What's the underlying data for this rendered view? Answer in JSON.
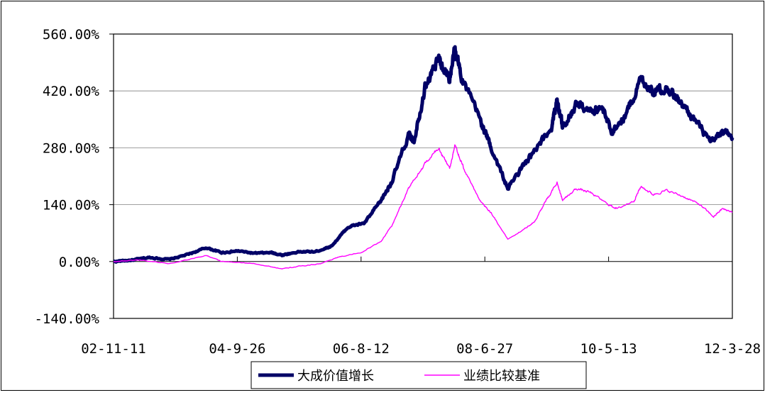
{
  "chart_data": {
    "type": "line",
    "title": "",
    "xlabel": "",
    "ylabel": "",
    "x_ticks": [
      "02-11-11",
      "04-9-26",
      "06-8-12",
      "08-6-27",
      "10-5-13",
      "12-3-28"
    ],
    "y_ticks": [
      "560.00%",
      "420.00%",
      "280.00%",
      "140.00%",
      "0.00%",
      "-140.00%"
    ],
    "ylim": [
      -140,
      560
    ],
    "xlim": [
      "2002-11-11",
      "2012-03-28"
    ],
    "grid": "horizontal",
    "legend_position": "bottom",
    "series": [
      {
        "name": "大成价值增长",
        "color": "#000066",
        "points": [
          [
            "2002-11-11",
            0
          ],
          [
            "2003-03-01",
            4
          ],
          [
            "2003-06-01",
            10
          ],
          [
            "2003-09-15",
            5
          ],
          [
            "2004-01-01",
            18
          ],
          [
            "2004-04-08",
            34
          ],
          [
            "2004-07-01",
            22
          ],
          [
            "2004-10-01",
            26
          ],
          [
            "2005-01-01",
            20
          ],
          [
            "2005-04-01",
            22
          ],
          [
            "2005-06-01",
            16
          ],
          [
            "2005-09-01",
            24
          ],
          [
            "2005-12-01",
            24
          ],
          [
            "2006-03-01",
            38
          ],
          [
            "2006-06-01",
            85
          ],
          [
            "2006-09-01",
            95
          ],
          [
            "2006-12-01",
            150
          ],
          [
            "2007-02-01",
            200
          ],
          [
            "2007-05-01",
            310
          ],
          [
            "2007-06-01",
            300
          ],
          [
            "2007-08-01",
            430
          ],
          [
            "2007-10-16",
            500
          ],
          [
            "2007-12-15",
            450
          ],
          [
            "2008-01-14",
            520
          ],
          [
            "2008-03-01",
            440
          ],
          [
            "2008-06-01",
            350
          ],
          [
            "2008-08-01",
            280
          ],
          [
            "2008-11-01",
            180
          ],
          [
            "2009-02-01",
            240
          ],
          [
            "2009-04-01",
            270
          ],
          [
            "2009-07-01",
            330
          ],
          [
            "2009-08-01",
            400
          ],
          [
            "2009-09-01",
            330
          ],
          [
            "2009-11-15",
            390
          ],
          [
            "2010-02-01",
            370
          ],
          [
            "2010-04-01",
            380
          ],
          [
            "2010-06-01",
            320
          ],
          [
            "2010-08-15",
            360
          ],
          [
            "2010-11-08",
            450
          ],
          [
            "2011-01-15",
            420
          ],
          [
            "2011-04-01",
            430
          ],
          [
            "2011-06-15",
            390
          ],
          [
            "2011-09-01",
            350
          ],
          [
            "2011-12-01",
            290
          ],
          [
            "2012-02-01",
            320
          ],
          [
            "2012-03-28",
            305
          ]
        ]
      },
      {
        "name": "业绩比较基准",
        "color": "#ff00ff",
        "points": [
          [
            "2002-11-11",
            0
          ],
          [
            "2003-04-01",
            4
          ],
          [
            "2003-09-15",
            -5
          ],
          [
            "2004-04-08",
            15
          ],
          [
            "2004-07-01",
            0
          ],
          [
            "2005-01-01",
            -5
          ],
          [
            "2005-06-01",
            -18
          ],
          [
            "2005-09-01",
            -12
          ],
          [
            "2006-01-01",
            -5
          ],
          [
            "2006-04-01",
            10
          ],
          [
            "2006-08-12",
            22
          ],
          [
            "2006-12-01",
            50
          ],
          [
            "2007-02-01",
            90
          ],
          [
            "2007-05-01",
            180
          ],
          [
            "2007-08-01",
            240
          ],
          [
            "2007-10-16",
            280
          ],
          [
            "2007-12-15",
            230
          ],
          [
            "2008-01-14",
            285
          ],
          [
            "2008-03-01",
            230
          ],
          [
            "2008-06-01",
            150
          ],
          [
            "2008-08-01",
            120
          ],
          [
            "2008-11-01",
            55
          ],
          [
            "2009-02-01",
            80
          ],
          [
            "2009-04-01",
            100
          ],
          [
            "2009-06-01",
            150
          ],
          [
            "2009-08-01",
            195
          ],
          [
            "2009-09-01",
            150
          ],
          [
            "2009-11-15",
            180
          ],
          [
            "2010-02-01",
            170
          ],
          [
            "2010-05-13",
            140
          ],
          [
            "2010-07-01",
            130
          ],
          [
            "2010-10-01",
            150
          ],
          [
            "2010-11-08",
            185
          ],
          [
            "2011-01-15",
            165
          ],
          [
            "2011-04-01",
            175
          ],
          [
            "2011-07-01",
            160
          ],
          [
            "2011-10-01",
            140
          ],
          [
            "2011-12-15",
            110
          ],
          [
            "2012-02-01",
            130
          ],
          [
            "2012-03-28",
            122
          ]
        ]
      }
    ]
  }
}
